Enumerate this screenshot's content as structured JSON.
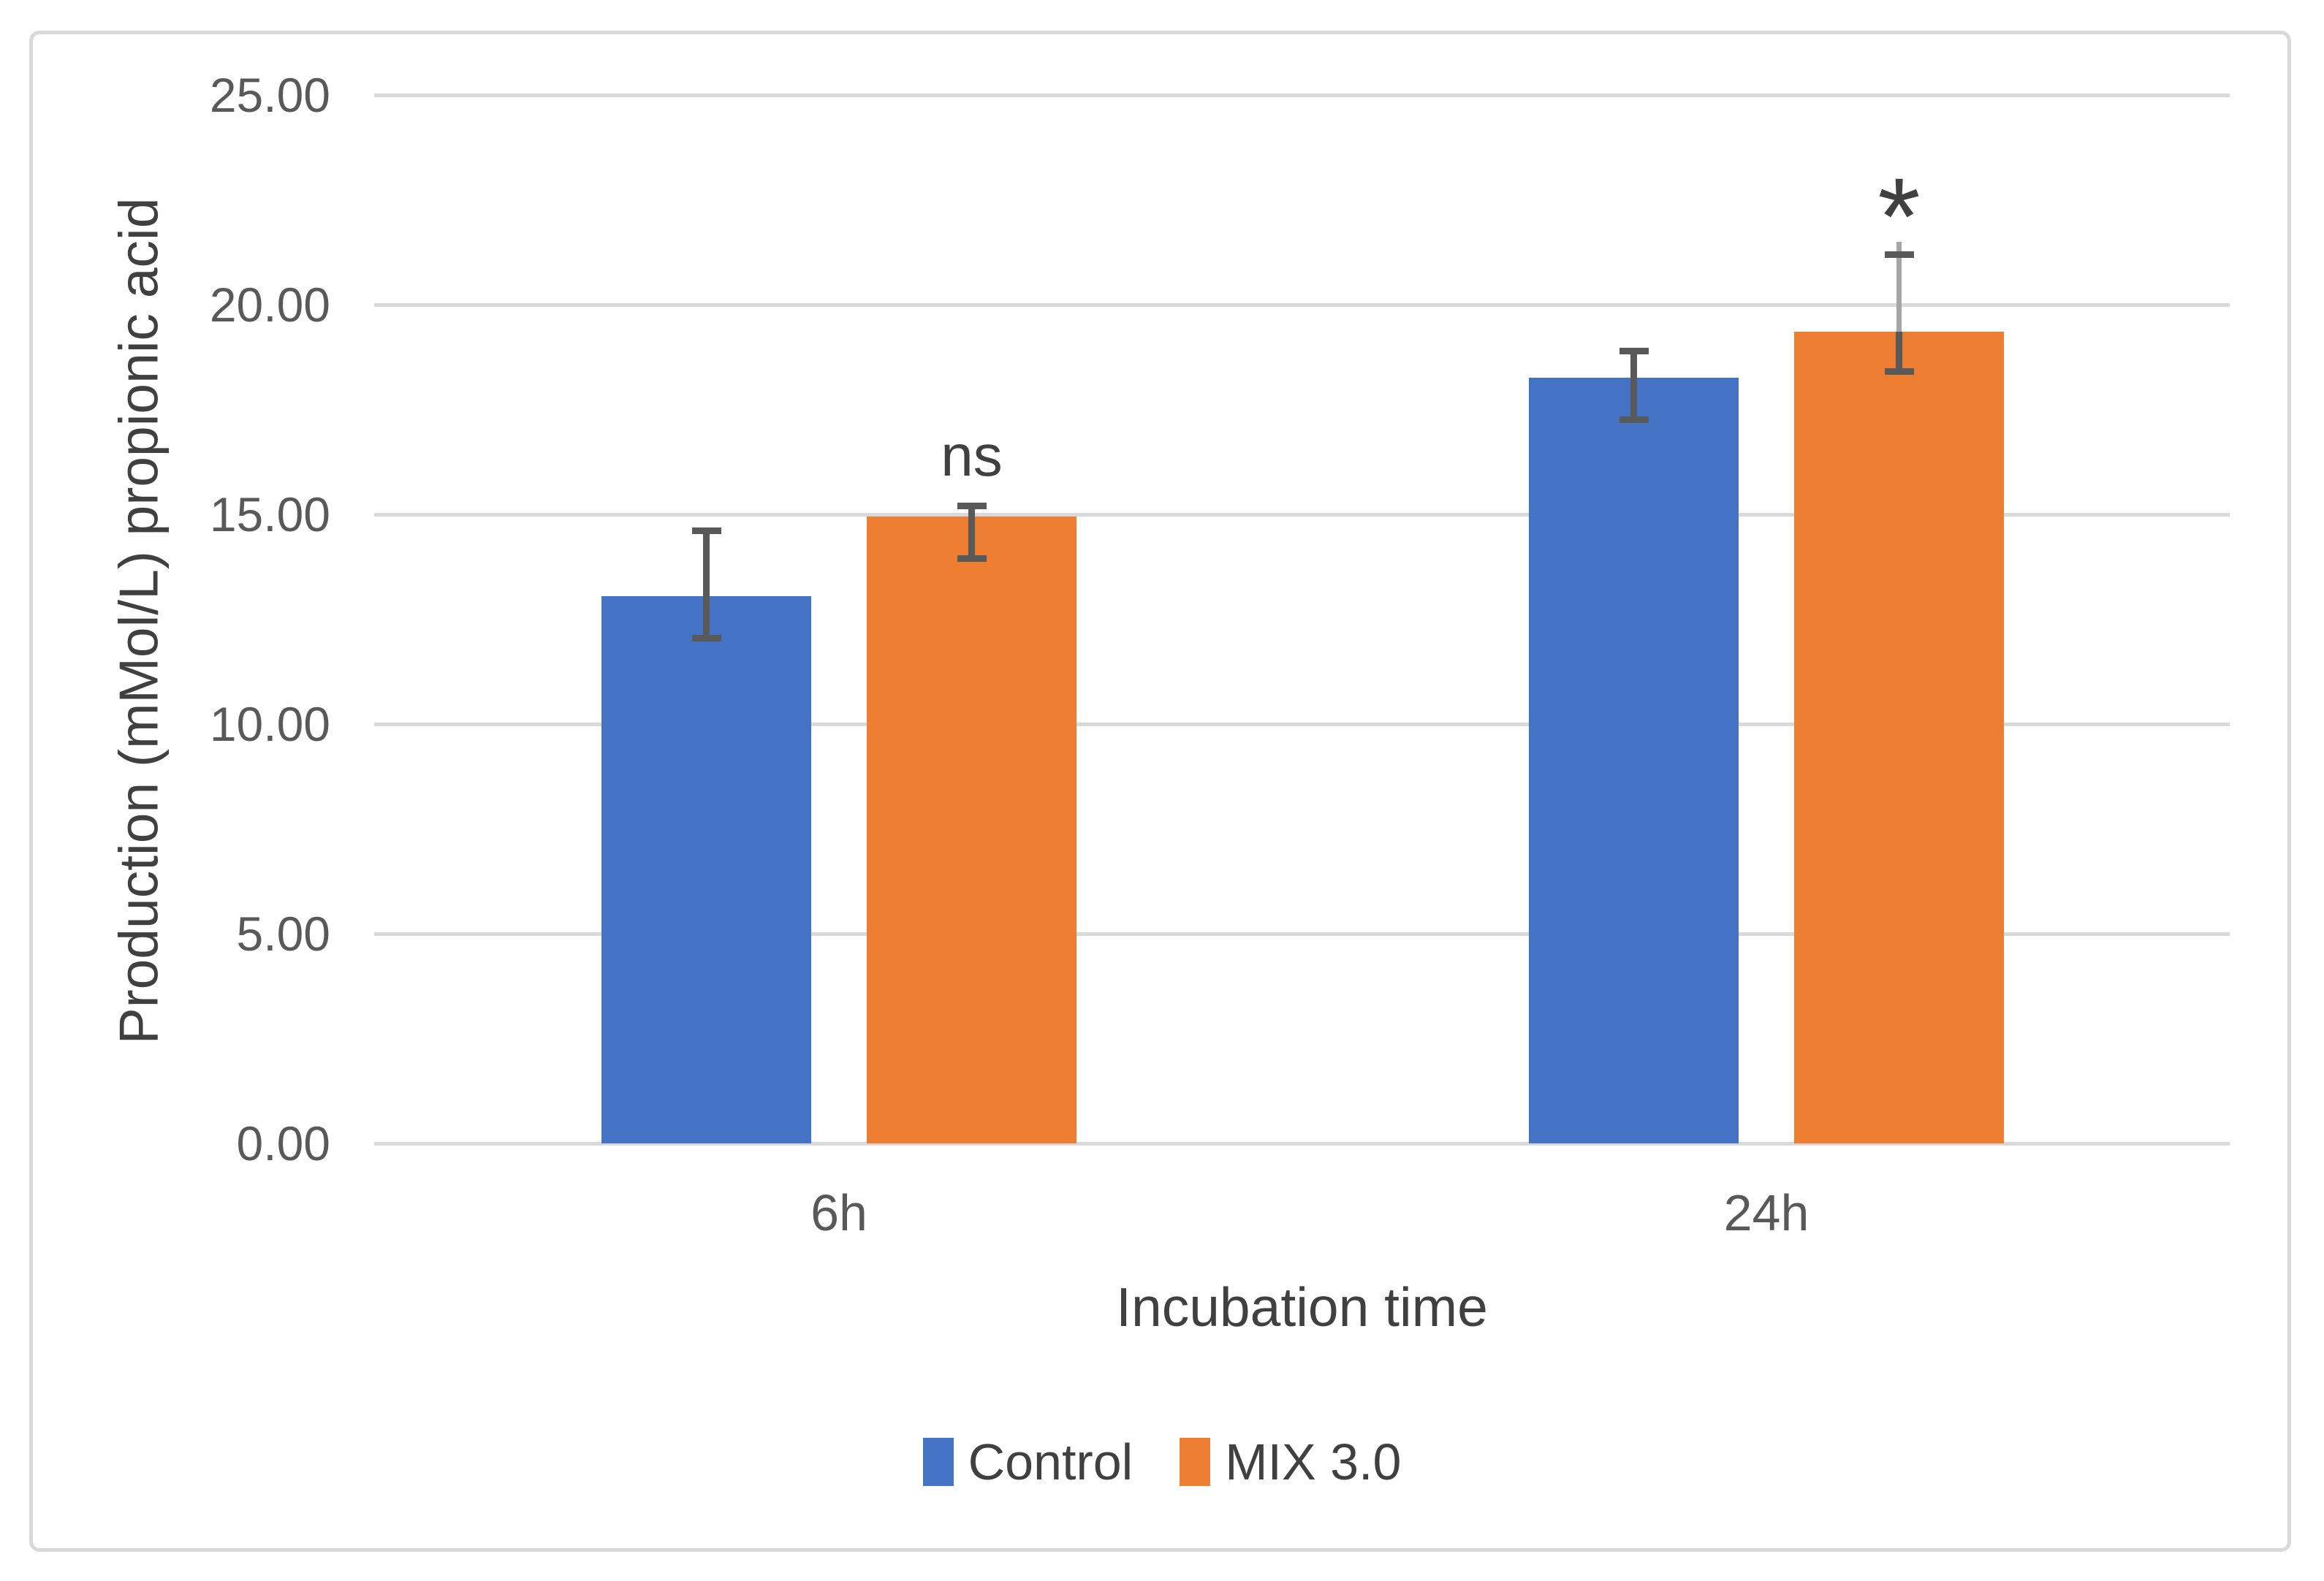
{
  "figure": {
    "background_color": "#FFFFFF",
    "border_color": "#D9D9D9"
  },
  "chart_data": {
    "type": "bar",
    "title": "",
    "categories": [
      "6h",
      "24h"
    ],
    "series": [
      {
        "name": "Control",
        "color": "#4472C4",
        "values": [
          13.05,
          18.25
        ],
        "error_bars": [
          {
            "top": 14.6,
            "bottom": 12.05
          },
          {
            "top": 18.9,
            "bottom": 17.25
          }
        ]
      },
      {
        "name": "MIX 3.0",
        "color": "#ED7D31",
        "values": [
          14.95,
          19.35
        ],
        "error_bars": [
          {
            "top": 15.2,
            "bottom": 13.95
          },
          {
            "top": 21.2,
            "bottom": 18.4,
            "light_line_top": 21.5
          }
        ]
      }
    ],
    "xlabel": "Incubation time",
    "ylabel": "Production (mMol/L) propionic acid",
    "ylim": [
      0,
      25
    ],
    "yticks": [
      {
        "value": 0,
        "label": "0.00"
      },
      {
        "value": 5,
        "label": "5.00"
      },
      {
        "value": 10,
        "label": "10.00"
      },
      {
        "value": 15,
        "label": "15.00"
      },
      {
        "value": 20,
        "label": "20.00"
      },
      {
        "value": 25,
        "label": "25.00"
      }
    ],
    "grid": true,
    "legend_position": "bottom",
    "annotations": [
      {
        "text": "ns",
        "category_index": 0,
        "series_index": 1,
        "y_value": 16.4
      },
      {
        "text": "*",
        "category_index": 1,
        "series_index": 1,
        "y_value": 22.9
      }
    ],
    "colors": {
      "gridline": "#D9D9D9",
      "error_bar": "#595959",
      "error_bar_light": "#A6A6A6",
      "tick_text": "#595959",
      "axis_title_text": "#404040"
    }
  }
}
